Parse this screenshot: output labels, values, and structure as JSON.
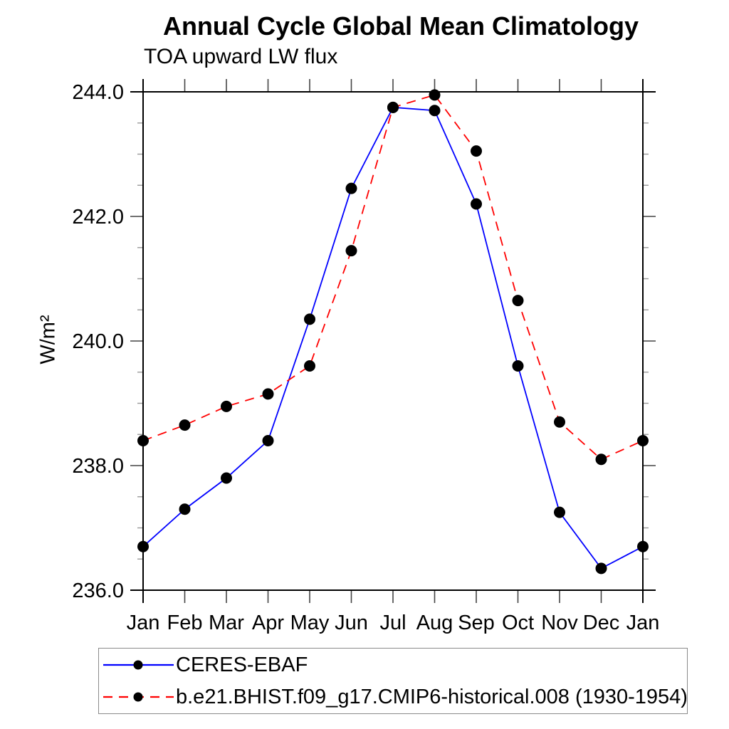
{
  "chart_data": {
    "type": "line",
    "title": "Annual Cycle Global Mean Climatology",
    "subtitle": "TOA upward LW flux",
    "ylabel": "W/m²",
    "x_categories": [
      "Jan",
      "Feb",
      "Mar",
      "Apr",
      "May",
      "Jun",
      "Jul",
      "Aug",
      "Sep",
      "Oct",
      "Nov",
      "Dec",
      "Jan"
    ],
    "ylim": [
      236.0,
      244.0
    ],
    "ytick_major_step": 2.0,
    "ytick_minor_step": 0.5,
    "ytick_labels": [
      "236.0",
      "238.0",
      "240.0",
      "242.0",
      "244.0"
    ],
    "grid": false,
    "legend_position": "bottom-left",
    "axis_color": "#000000",
    "marker_color": "#000000",
    "series": [
      {
        "name": "CERES-EBAF",
        "color": "#0000ff",
        "line_style": "solid",
        "marker": "circle",
        "values": [
          236.7,
          237.3,
          237.8,
          238.4,
          240.35,
          242.45,
          243.75,
          243.7,
          242.2,
          239.6,
          237.25,
          236.35,
          236.7
        ]
      },
      {
        "name": "b.e21.BHIST.f09_g17.CMIP6-historical.008 (1930-1954)",
        "color": "#ff0000",
        "line_style": "dashed",
        "marker": "circle",
        "values": [
          238.4,
          238.65,
          238.95,
          239.15,
          239.6,
          241.45,
          243.75,
          243.95,
          243.05,
          240.65,
          238.7,
          238.1,
          238.4
        ]
      }
    ]
  }
}
